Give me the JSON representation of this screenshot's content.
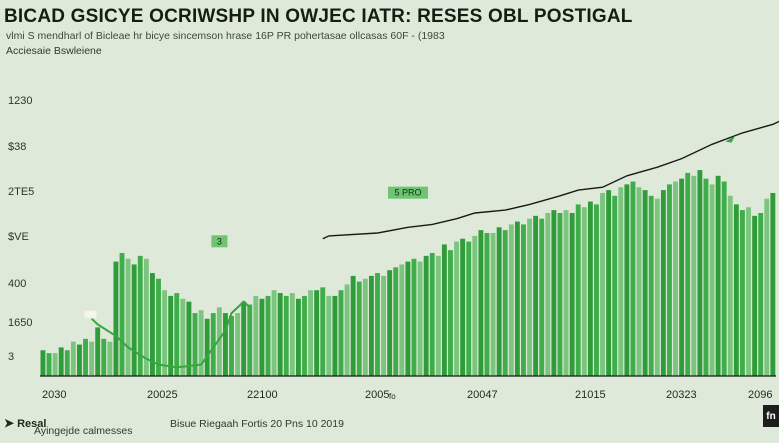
{
  "title": "BICAD GSICYE OCRIWSHP IN OWJEC IATR: RESES OBL POSTIGAL",
  "subtitle": "vlmi S mendharl of Bicleae hr bicye sincemson hrase 16P PR pohertasae ollcasas 60F - (1983",
  "ylabel": "Acciesaie Bswleiene",
  "source": "Ayingejde calmesses",
  "source_note": "Bisue Riegaah Fortis 20 Pns 10 2019",
  "logo": "Resal",
  "badge": "fn",
  "colors": {
    "background": "#dfe9d9",
    "bars": "#3fae4a",
    "trend_line": "#1a1a1a",
    "green_line": "#36a63f",
    "axis": "#1a1a1a"
  },
  "chart_data": {
    "type": "bar",
    "y_ticks": [
      "3",
      "1650",
      "400",
      "$VE",
      "2TE5",
      "$38",
      "1230"
    ],
    "x_ticks": [
      "2030",
      "20025",
      "22100",
      "2005",
      "20047",
      "21015",
      "20323",
      "2096"
    ],
    "x_tick_suffix": "fo",
    "annotations": [
      {
        "text": "3",
        "x_index": 29,
        "y": 45
      },
      {
        "text": "5 PRO",
        "x_index": 60,
        "y": 62
      }
    ],
    "ylim": [
      0,
      100
    ],
    "grid": false,
    "values": [
      9,
      8,
      8,
      10,
      9,
      12,
      11,
      13,
      12,
      17,
      13,
      12,
      40,
      43,
      41,
      39,
      42,
      41,
      36,
      34,
      30,
      28,
      29,
      27,
      26,
      22,
      23,
      20,
      22,
      24,
      22,
      21,
      22,
      26,
      25,
      28,
      27,
      28,
      30,
      29,
      28,
      29,
      27,
      28,
      30,
      30,
      31,
      28,
      28,
      30,
      32,
      35,
      33,
      34,
      35,
      36,
      35,
      37,
      38,
      39,
      40,
      41,
      40,
      42,
      43,
      42,
      46,
      44,
      47,
      48,
      47,
      49,
      51,
      50,
      50,
      52,
      51,
      53,
      54,
      53,
      55,
      56,
      55,
      57,
      58,
      57,
      58,
      57,
      60,
      59,
      61,
      60,
      64,
      65,
      63,
      66,
      67,
      68,
      66,
      65,
      63,
      62,
      65,
      67,
      68,
      69,
      71,
      70,
      72,
      69,
      67,
      70,
      68,
      63,
      60,
      58,
      59,
      56,
      57,
      62,
      64
    ],
    "trend_line": {
      "name": "",
      "points": [
        [
          46,
          48
        ],
        [
          47,
          49
        ],
        [
          55,
          50
        ],
        [
          60,
          52
        ],
        [
          64,
          53
        ],
        [
          68,
          55
        ],
        [
          71,
          57
        ],
        [
          76,
          58
        ],
        [
          80,
          60
        ],
        [
          85,
          63
        ],
        [
          88,
          65
        ],
        [
          92,
          66
        ],
        [
          96,
          70
        ],
        [
          101,
          73
        ],
        [
          105,
          76
        ],
        [
          110,
          81
        ],
        [
          115,
          85
        ],
        [
          120,
          88
        ],
        [
          124,
          92
        ]
      ]
    },
    "green_line": {
      "name": "",
      "points": [
        [
          8,
          20
        ],
        [
          9,
          18
        ],
        [
          12,
          14
        ],
        [
          14,
          10
        ],
        [
          17,
          6
        ],
        [
          19,
          4
        ],
        [
          22,
          3
        ],
        [
          26,
          4
        ],
        [
          28,
          10
        ],
        [
          30,
          16
        ],
        [
          31,
          22
        ],
        [
          33,
          26
        ],
        [
          34,
          24
        ]
      ]
    },
    "arrow_markers": [
      {
        "x": 113,
        "y": 83
      },
      {
        "x": 124,
        "y": 92
      }
    ]
  }
}
